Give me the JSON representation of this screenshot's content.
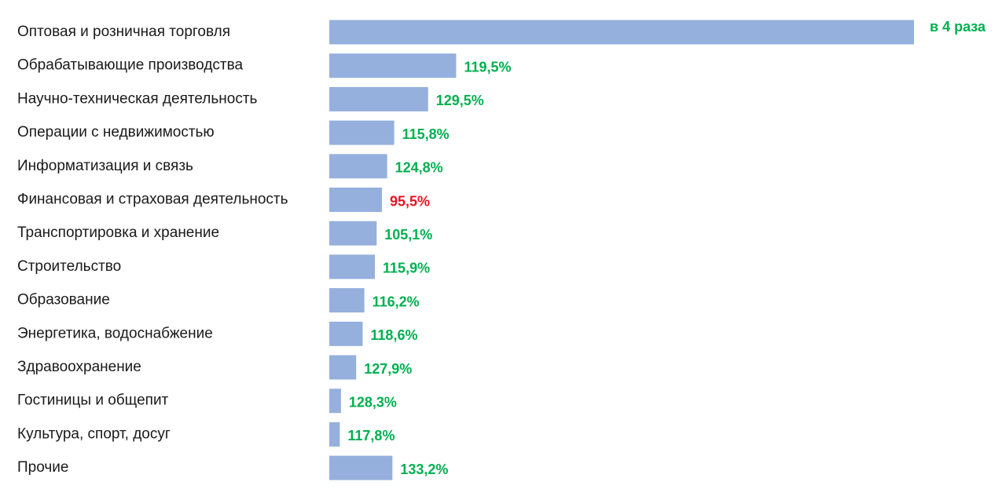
{
  "chart_data": {
    "type": "bar",
    "orientation": "horizontal",
    "categories": [
      "Оптовая и розничная торговля",
      "Обрабатывающие производства",
      "Научно-техническая деятельность",
      "Операции с недвижимостью",
      "Информатизация и связь",
      "Финансовая и страховая деятельность",
      "Транспортировка и хранение",
      "Строительство",
      "Образование",
      "Энергетика, водоснабжение",
      "Здравоохранение",
      "Гостиницы и общепит",
      "Культура, спорт, досуг",
      "Прочие"
    ],
    "values": [
      100,
      21.7,
      16.9,
      11.1,
      9.9,
      9.0,
      8.1,
      7.8,
      6.0,
      5.7,
      4.6,
      2.0,
      1.8,
      10.8
    ],
    "data_labels": [
      "в 4 раза",
      "119,5%",
      "129,5%",
      "115,8%",
      "124,8%",
      "95,5%",
      "105,1%",
      "115,9%",
      "116,2%",
      "118,6%",
      "127,9%",
      "128,3%",
      "117,8%",
      "133,2%"
    ],
    "label_colors": [
      "#00b050",
      "#00b050",
      "#00b050",
      "#00b050",
      "#00b050",
      "#e81123",
      "#00b050",
      "#00b050",
      "#00b050",
      "#00b050",
      "#00b050",
      "#00b050",
      "#00b050",
      "#00b050"
    ],
    "bar_color": "#95b0dd",
    "xlim": [
      0,
      100
    ],
    "grid": false,
    "legend": "none",
    "title": "",
    "xlabel": "",
    "ylabel": ""
  }
}
